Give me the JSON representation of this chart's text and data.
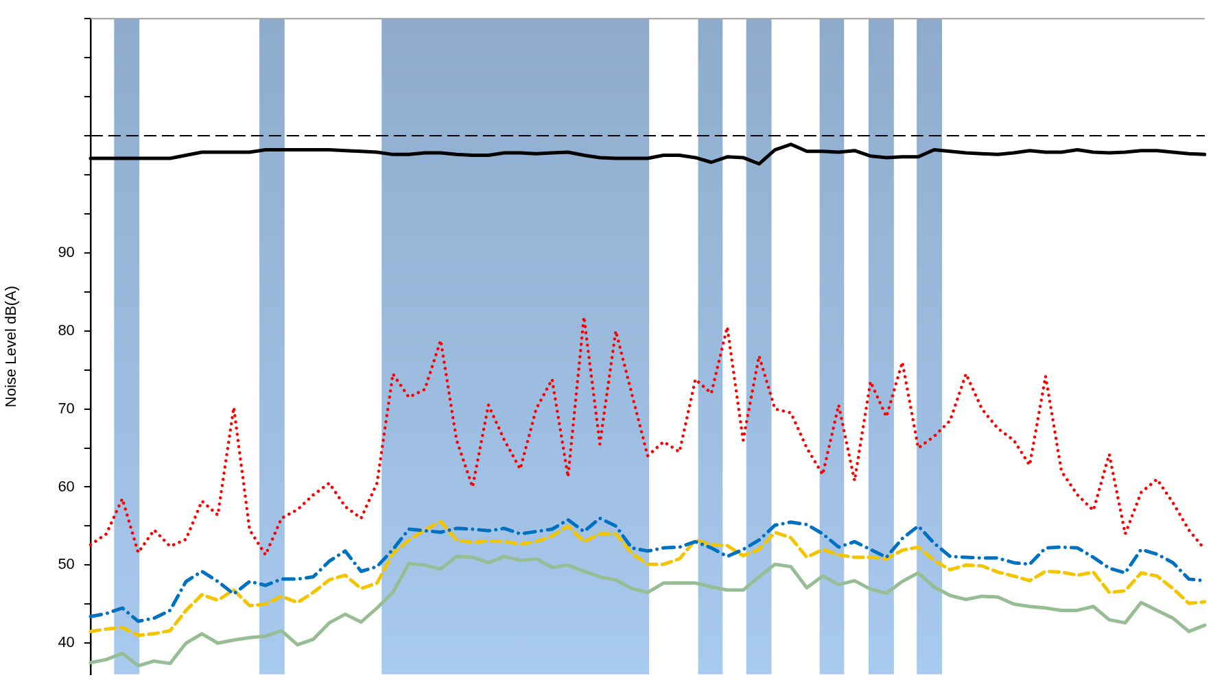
{
  "chart_data": {
    "type": "line",
    "ylabel": "Noise Level dB(A)",
    "categories": [
      null,
      null,
      null,
      null,
      null,
      null,
      null,
      null,
      null,
      null,
      null,
      null,
      null,
      null,
      null,
      null,
      null,
      null,
      null,
      null,
      null,
      null,
      null,
      null,
      null,
      null,
      null,
      null,
      null,
      null,
      null,
      null,
      null,
      null,
      null,
      null,
      null,
      null,
      null,
      null,
      null,
      null,
      null,
      null,
      null,
      null,
      null,
      null,
      null,
      null,
      null,
      null,
      null,
      null,
      null,
      null,
      null,
      null,
      null,
      null,
      null,
      null,
      null,
      null,
      null,
      null,
      null,
      null,
      null,
      null,
      null
    ],
    "ylim": [
      36,
      120
    ],
    "yticks": [
      40,
      {
        "value": 45,
        "label": null
      },
      50,
      {
        "value": 55,
        "label": null
      },
      60,
      {
        "value": 65,
        "label": null
      },
      70,
      {
        "value": 75,
        "label": null
      },
      80,
      {
        "value": 85,
        "label": null
      },
      90,
      {
        "value": 95,
        "label": null
      },
      {
        "value": 100,
        "label": null
      },
      {
        "value": 105,
        "label": null
      },
      {
        "value": 110,
        "label": null
      },
      {
        "value": 115,
        "label": null
      },
      {
        "value": 120,
        "label": null
      }
    ],
    "tick_labels": "y",
    "grid": false,
    "legend": false,
    "marker": "none",
    "series": [
      {
        "color": "#ff0000",
        "line_style": "dotted",
        "values": [
          52.6,
          54,
          58.5,
          51.6,
          54.5,
          52.4,
          53.3,
          58.2,
          56.4,
          70.2,
          54.5,
          51.3,
          56,
          57.1,
          59,
          60.5,
          57.5,
          56,
          60.5,
          74.5,
          71.5,
          72.5,
          78.8,
          66,
          60,
          70.5,
          66,
          62.3,
          70,
          73.8,
          61.3,
          81.8,
          65.5,
          80,
          72,
          64,
          65.8,
          64.5,
          73.8,
          72,
          80.5,
          66,
          76.8,
          70,
          69.5,
          65,
          61.6,
          70.5,
          60.8,
          73.5,
          69,
          76,
          65,
          66.5,
          68.5,
          74.5,
          70,
          67.5,
          66,
          62.8,
          74.2,
          62,
          59,
          57,
          64.2,
          54,
          59.3,
          61,
          58,
          54.5,
          52
        ]
      },
      {
        "color": "#0070c0",
        "line_style": "dashdot",
        "values": [
          43.4,
          43.8,
          44.5,
          42.8,
          43.2,
          44.2,
          47.9,
          49.2,
          47.9,
          46.3,
          47.9,
          47.4,
          48.2,
          48.2,
          48.5,
          50.5,
          51.8,
          49.2,
          49.8,
          52,
          54.6,
          54.4,
          54.2,
          54.7,
          54.6,
          54.4,
          54.7,
          54,
          54.3,
          54.6,
          55.8,
          54.3,
          56,
          55,
          52.2,
          51.8,
          52.2,
          52.3,
          53,
          52.2,
          51.1,
          52,
          53.2,
          55.1,
          55.5,
          55.2,
          54,
          52.3,
          53,
          52,
          51,
          53.4,
          55,
          52.8,
          51.1,
          51,
          50.9,
          50.9,
          50.3,
          50.1,
          52.2,
          52.3,
          52.2,
          51,
          49.6,
          49,
          52,
          51.4,
          50.3,
          48.2,
          48
        ]
      },
      {
        "color": "#f2c500",
        "line_style": "dashed",
        "values": [
          41.5,
          41.8,
          42,
          41,
          41.2,
          41.6,
          44.2,
          46.2,
          45.5,
          46.8,
          44.8,
          45,
          46,
          45.2,
          46.5,
          48.1,
          48.7,
          47,
          47.7,
          51.5,
          53.2,
          54.5,
          55.6,
          53.2,
          52.9,
          53.1,
          53,
          52.7,
          53,
          53.7,
          55,
          53,
          54,
          54,
          51.5,
          50.1,
          50.1,
          50.8,
          53.2,
          52.6,
          52.5,
          51.2,
          52,
          54.2,
          53.5,
          51,
          52,
          51.3,
          51,
          51,
          50.8,
          51.9,
          52.3,
          50.6,
          49.4,
          50,
          49.9,
          49.1,
          48.6,
          48,
          49.2,
          49.1,
          48.7,
          49.1,
          46.5,
          46.7,
          49,
          48.6,
          47,
          45.1,
          45.3
        ]
      },
      {
        "color": "#97bd94",
        "line_style": "solid",
        "values": [
          37.5,
          37.9,
          38.7,
          37.1,
          37.7,
          37.4,
          40,
          41.2,
          40,
          40.4,
          40.7,
          40.9,
          41.6,
          39.8,
          40.5,
          42.6,
          43.7,
          42.7,
          44.5,
          46.5,
          50.2,
          50,
          49.5,
          51.1,
          51,
          50.3,
          51.1,
          50.6,
          50.8,
          49.7,
          50,
          49.2,
          48.5,
          48.1,
          47,
          46.5,
          47.7,
          47.7,
          47.7,
          47.2,
          46.8,
          46.8,
          48.5,
          50.1,
          49.8,
          47.1,
          48.6,
          47.5,
          48,
          46.9,
          46.4,
          47.9,
          49,
          47.2,
          46.1,
          45.6,
          46,
          45.9,
          45,
          44.7,
          44.5,
          44.2,
          44.2,
          44.7,
          43,
          42.6,
          45.2,
          44.2,
          43.2,
          41.5,
          42.3
        ]
      },
      {
        "color": "#000000",
        "line_style": "solid",
        "values": [
          102.1,
          102.1,
          102.1,
          102.1,
          102.1,
          102.1,
          102.5,
          102.9,
          102.9,
          102.9,
          102.9,
          103.2,
          103.2,
          103.2,
          103.2,
          103.2,
          103.1,
          103,
          102.9,
          102.6,
          102.6,
          102.8,
          102.8,
          102.6,
          102.5,
          102.5,
          102.8,
          102.8,
          102.7,
          102.8,
          102.9,
          102.5,
          102.2,
          102.1,
          102.1,
          102.1,
          102.5,
          102.5,
          102.2,
          101.6,
          102.3,
          102.2,
          101.4,
          103.2,
          103.9,
          103,
          103,
          102.9,
          103.1,
          102.4,
          102.2,
          102.3,
          102.3,
          103.2,
          103,
          102.8,
          102.7,
          102.6,
          102.8,
          103.1,
          102.9,
          102.9,
          103.2,
          102.9,
          102.8,
          102.9,
          103.1,
          103.1,
          102.9,
          102.7,
          102.6
        ]
      }
    ],
    "ref_lines": [
      {
        "axis": "y",
        "value": 105,
        "color": "#000000",
        "line_style": "dashed"
      }
    ]
  }
}
